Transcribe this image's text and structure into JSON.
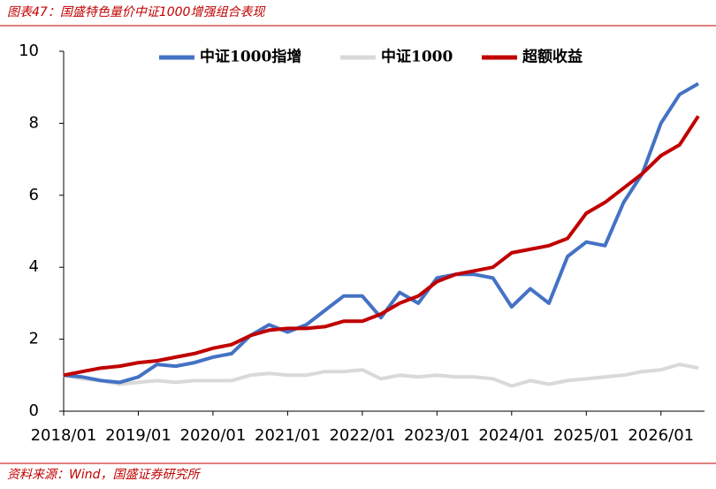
{
  "header": {
    "title": "图表47：国盛特色量价中证1000增强组合表现"
  },
  "chart_data": {
    "type": "line",
    "x": [
      "2018/01",
      "2018/04",
      "2018/07",
      "2018/10",
      "2019/01",
      "2019/04",
      "2019/07",
      "2019/10",
      "2020/01",
      "2020/04",
      "2020/07",
      "2020/10",
      "2021/01",
      "2021/04",
      "2021/07",
      "2021/10",
      "2022/01",
      "2022/04",
      "2022/07",
      "2022/10",
      "2023/01",
      "2023/04",
      "2023/07",
      "2023/10",
      "2024/01",
      "2024/04",
      "2024/07",
      "2024/10",
      "2025/01",
      "2025/04",
      "2025/07",
      "2025/10",
      "2026/01",
      "2026/04",
      "2026/07"
    ],
    "series": [
      {
        "name": "中证1000指增",
        "color": "#4472c4",
        "values": [
          1.0,
          0.95,
          0.85,
          0.8,
          0.95,
          1.3,
          1.25,
          1.35,
          1.5,
          1.6,
          2.1,
          2.4,
          2.2,
          2.4,
          2.8,
          3.2,
          3.2,
          2.6,
          3.3,
          3.0,
          3.7,
          3.8,
          3.8,
          3.7,
          2.9,
          3.4,
          3.0,
          4.3,
          4.7,
          4.6,
          5.8,
          6.6,
          8.0,
          8.8,
          9.1
        ]
      },
      {
        "name": "中证1000",
        "color": "#d9d9d9",
        "values": [
          1.0,
          0.9,
          0.85,
          0.75,
          0.8,
          0.85,
          0.8,
          0.85,
          0.85,
          0.85,
          1.0,
          1.05,
          1.0,
          1.0,
          1.1,
          1.1,
          1.15,
          0.9,
          1.0,
          0.95,
          1.0,
          0.95,
          0.95,
          0.9,
          0.7,
          0.85,
          0.75,
          0.85,
          0.9,
          0.95,
          1.0,
          1.1,
          1.15,
          1.3,
          1.2
        ]
      },
      {
        "name": "超额收益",
        "color": "#c00000",
        "values": [
          1.0,
          1.1,
          1.2,
          1.25,
          1.35,
          1.4,
          1.5,
          1.6,
          1.75,
          1.85,
          2.1,
          2.25,
          2.3,
          2.3,
          2.35,
          2.5,
          2.5,
          2.7,
          3.0,
          3.2,
          3.6,
          3.8,
          3.9,
          4.0,
          4.4,
          4.5,
          4.6,
          4.8,
          5.5,
          5.8,
          6.2,
          6.6,
          7.1,
          7.4,
          8.2
        ]
      }
    ],
    "xlim": [
      "2018/01",
      "2026/08"
    ],
    "xticks": [
      "2018/01",
      "2019/01",
      "2020/01",
      "2021/01",
      "2022/01",
      "2023/01",
      "2024/01",
      "2025/01",
      "2026/01"
    ],
    "ylim": [
      0,
      10
    ],
    "yticks": [
      0,
      2,
      4,
      6,
      8,
      10
    ],
    "grid": false,
    "legend": "top"
  },
  "footer": {
    "source": "资料来源：Wind，国盛证券研究所"
  }
}
